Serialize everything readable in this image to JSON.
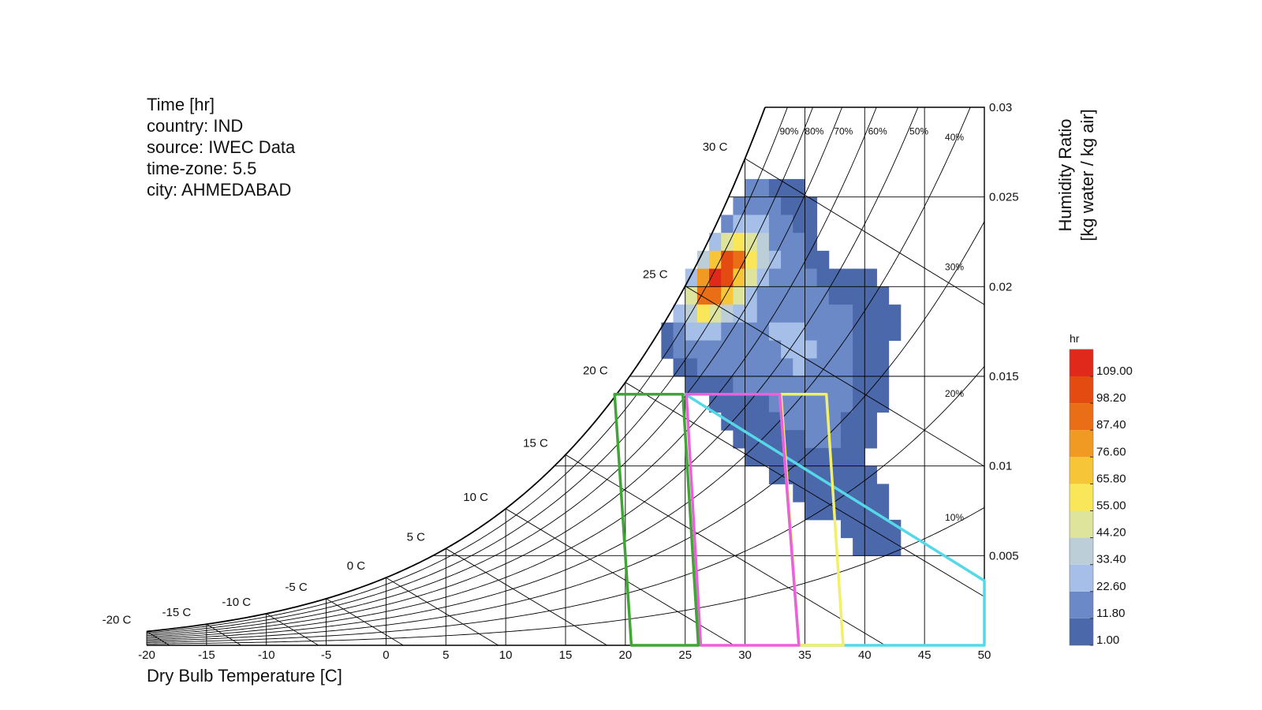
{
  "chart_data": {
    "type": "psychrometric",
    "info": [
      "Time [hr]",
      "country: IND",
      "source: IWEC Data",
      "time-zone: 5.5",
      "city: AHMEDABAD"
    ],
    "x_label": "Dry Bulb Temperature [C]",
    "y_label": [
      "Humidity Ratio",
      "[kg water / kg air]"
    ],
    "xlim": [
      -20,
      50
    ],
    "xticks": [
      -20,
      -15,
      -10,
      -5,
      0,
      5,
      10,
      15,
      20,
      25,
      30,
      35,
      40,
      45,
      50
    ],
    "ylim": [
      0,
      0.03
    ],
    "yticks": [
      0.005,
      0.01,
      0.015,
      0.02,
      0.025,
      0.03
    ],
    "wetbulb_labels": [
      {
        "value": -20,
        "label": "-20 C"
      },
      {
        "value": -15,
        "label": "-15 C"
      },
      {
        "value": -10,
        "label": "-10 C"
      },
      {
        "value": -5,
        "label": "-5 C"
      },
      {
        "value": 0,
        "label": "0 C"
      },
      {
        "value": 5,
        "label": "5 C"
      },
      {
        "value": 10,
        "label": "10 C"
      },
      {
        "value": 15,
        "label": "15 C"
      },
      {
        "value": 20,
        "label": "20 C"
      },
      {
        "value": 25,
        "label": "25 C"
      },
      {
        "value": 30,
        "label": "30 C"
      }
    ],
    "rh_labels": [
      {
        "value": 90,
        "label": "90%"
      },
      {
        "value": 80,
        "label": "80%"
      },
      {
        "value": 70,
        "label": "70%"
      },
      {
        "value": 60,
        "label": "60%"
      },
      {
        "value": 50,
        "label": "50%"
      },
      {
        "value": 40,
        "label": "40%"
      },
      {
        "value": 30,
        "label": "30%"
      },
      {
        "value": 20,
        "label": "20%"
      },
      {
        "value": 10,
        "label": "10%"
      }
    ],
    "heatmap": {
      "rows": [
        {
          "w": 0.025,
          "t0": 30,
          "values": [
            8,
            10,
            6,
            4,
            3
          ]
        },
        {
          "w": 0.024,
          "t0": 29,
          "values": [
            10,
            14,
            12,
            8,
            6,
            5,
            3
          ]
        },
        {
          "w": 0.023,
          "t0": 28,
          "values": [
            12,
            22,
            25,
            18,
            12,
            8,
            6,
            4
          ]
        },
        {
          "w": 0.022,
          "t0": 27,
          "values": [
            18,
            40,
            58,
            44,
            28,
            16,
            10,
            8,
            5
          ]
        },
        {
          "w": 0.021,
          "t0": 26,
          "values": [
            30,
            70,
            95,
            88,
            60,
            34,
            18,
            12,
            10,
            6,
            4
          ]
        },
        {
          "w": 0.02,
          "t0": 25,
          "values": [
            24,
            80,
            109,
            100,
            70,
            40,
            20,
            14,
            12,
            10,
            8,
            6,
            4,
            3,
            3,
            2
          ]
        },
        {
          "w": 0.019,
          "t0": 25,
          "values": [
            40,
            85,
            90,
            66,
            40,
            22,
            16,
            14,
            12,
            12,
            10,
            8,
            6,
            5,
            4,
            3,
            2
          ]
        },
        {
          "w": 0.018,
          "t0": 24,
          "values": [
            20,
            30,
            50,
            45,
            30,
            20,
            18,
            16,
            14,
            14,
            16,
            14,
            12,
            10,
            8,
            6,
            4,
            2,
            2
          ]
        },
        {
          "w": 0.017,
          "t0": 23,
          "values": [
            6,
            14,
            20,
            22,
            18,
            16,
            14,
            14,
            16,
            18,
            20,
            18,
            16,
            14,
            12,
            10,
            6,
            4,
            3,
            2
          ]
        },
        {
          "w": 0.016,
          "t0": 23,
          "values": [
            4,
            8,
            10,
            12,
            12,
            12,
            12,
            12,
            14,
            16,
            18,
            20,
            18,
            16,
            12,
            8,
            5,
            3,
            2
          ]
        },
        {
          "w": 0.015,
          "t0": 24,
          "values": [
            4,
            6,
            8,
            8,
            8,
            10,
            10,
            12,
            14,
            16,
            18,
            16,
            14,
            10,
            8,
            5,
            3,
            2
          ]
        },
        {
          "w": 0.014,
          "t0": 25,
          "values": [
            3,
            4,
            5,
            6,
            8,
            8,
            10,
            12,
            14,
            14,
            14,
            12,
            10,
            8,
            5,
            3,
            2
          ]
        },
        {
          "w": 0.013,
          "t0": 27,
          "values": [
            2,
            3,
            4,
            6,
            6,
            8,
            10,
            12,
            12,
            12,
            10,
            8,
            6,
            4,
            3
          ]
        },
        {
          "w": 0.012,
          "t0": 28,
          "values": [
            2,
            3,
            4,
            5,
            6,
            8,
            10,
            10,
            10,
            8,
            6,
            4,
            2
          ]
        },
        {
          "w": 0.011,
          "t0": 29,
          "values": [
            2,
            2,
            3,
            4,
            5,
            6,
            8,
            8,
            8,
            6,
            4,
            2
          ]
        },
        {
          "w": 0.01,
          "t0": 30,
          "values": [
            2,
            2,
            3,
            4,
            5,
            6,
            6,
            6,
            5,
            3
          ]
        },
        {
          "w": 0.009,
          "t0": 32,
          "values": [
            2,
            2,
            3,
            4,
            4,
            5,
            5,
            4,
            3
          ]
        },
        {
          "w": 0.008,
          "t0": 34,
          "values": [
            2,
            2,
            3,
            3,
            4,
            4,
            3,
            2
          ]
        },
        {
          "w": 0.007,
          "t0": 35,
          "values": [
            2,
            2,
            2,
            3,
            3,
            3,
            2
          ]
        },
        {
          "w": 0.006,
          "t0": 38,
          "values": [
            1,
            2,
            2,
            2,
            2
          ]
        },
        {
          "w": 0.005,
          "t0": 39,
          "values": [
            1,
            1,
            2,
            1
          ]
        }
      ]
    },
    "polygons": [
      {
        "color": "#55d8e8",
        "points": [
          [
            25,
            0.014
          ],
          [
            50,
            0.0036
          ],
          [
            50,
            0
          ],
          [
            34.5,
            0
          ],
          [
            32.9,
            0.014
          ]
        ]
      },
      {
        "color": "#f2f066",
        "points": [
          [
            33,
            0.014
          ],
          [
            36.8,
            0.014
          ],
          [
            38.2,
            0
          ],
          [
            34.5,
            0
          ]
        ]
      },
      {
        "color": "#ee5fdc",
        "points": [
          [
            25.1,
            0.014
          ],
          [
            32.9,
            0.014
          ],
          [
            34.5,
            0
          ],
          [
            26.3,
            0
          ]
        ]
      },
      {
        "color": "#3fa535",
        "points": [
          [
            19.1,
            0.014
          ],
          [
            24.8,
            0.014
          ],
          [
            26.1,
            0
          ],
          [
            20.5,
            0
          ]
        ]
      }
    ],
    "legend": {
      "title": "hr",
      "colors": [
        "#4b68ab",
        "#6a89c6",
        "#a5bfe9",
        "#bccfd8",
        "#dfe49c",
        "#fae759",
        "#f6c538",
        "#f09a23",
        "#e96e16",
        "#e44b10",
        "#e0291b"
      ],
      "ticks": [
        {
          "value": 1,
          "label": "1.00"
        },
        {
          "value": 11.8,
          "label": "11.80"
        },
        {
          "value": 22.6,
          "label": "22.60"
        },
        {
          "value": 33.4,
          "label": "33.40"
        },
        {
          "value": 44.2,
          "label": "44.20"
        },
        {
          "value": 55,
          "label": "55.00"
        },
        {
          "value": 65.8,
          "label": "65.80"
        },
        {
          "value": 76.6,
          "label": "76.60"
        },
        {
          "value": 87.4,
          "label": "87.40"
        },
        {
          "value": 98.2,
          "label": "98.20"
        },
        {
          "value": 109,
          "label": "109.00"
        }
      ]
    }
  }
}
